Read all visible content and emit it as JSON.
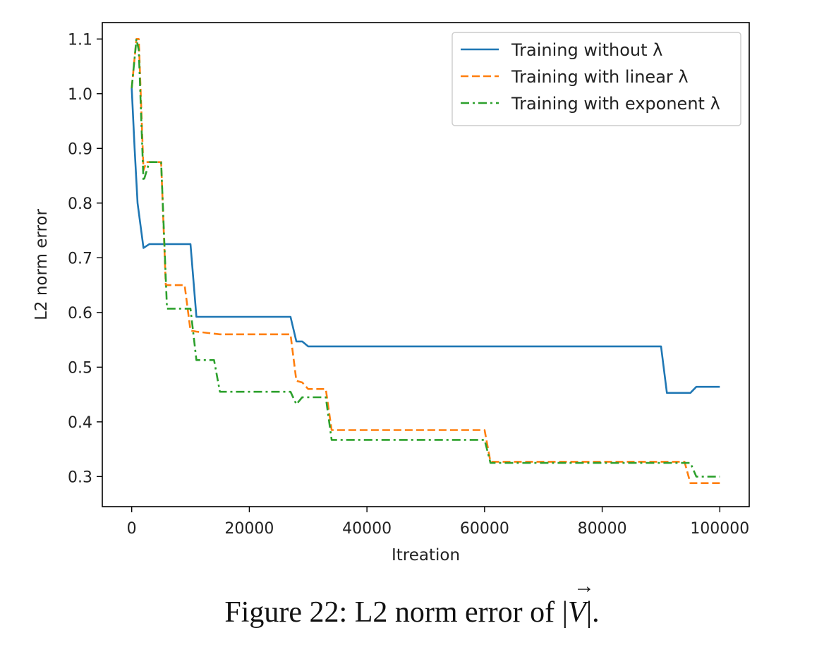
{
  "chart_data": {
    "type": "line",
    "title": "",
    "xlabel": "Itreation",
    "ylabel": "L2 norm error",
    "xlim": [
      -5000,
      105000
    ],
    "ylim": [
      0.245,
      1.13
    ],
    "xticks": [
      0,
      20000,
      40000,
      60000,
      80000,
      100000
    ],
    "xtick_labels": [
      "0",
      "20000",
      "40000",
      "60000",
      "80000",
      "100000"
    ],
    "yticks": [
      0.3,
      0.4,
      0.5,
      0.6,
      0.7,
      0.8,
      0.9,
      1.0,
      1.1
    ],
    "ytick_labels": [
      "0.3",
      "0.4",
      "0.5",
      "0.6",
      "0.7",
      "0.8",
      "0.9",
      "1.0",
      "1.1"
    ],
    "grid": false,
    "legend_position": "top-right",
    "series": [
      {
        "name": "Training without λ",
        "color": "#1f77b4",
        "style": "solid",
        "points": [
          [
            0,
            1.01
          ],
          [
            500,
            0.9
          ],
          [
            1000,
            0.8
          ],
          [
            2000,
            0.718
          ],
          [
            3000,
            0.725
          ],
          [
            10000,
            0.725
          ],
          [
            11000,
            0.592
          ],
          [
            27000,
            0.592
          ],
          [
            28000,
            0.547
          ],
          [
            29000,
            0.547
          ],
          [
            30000,
            0.538
          ],
          [
            90000,
            0.538
          ],
          [
            91000,
            0.453
          ],
          [
            95000,
            0.453
          ],
          [
            96000,
            0.464
          ],
          [
            100000,
            0.464
          ]
        ]
      },
      {
        "name": "Training with linear λ",
        "color": "#ff7f0e",
        "style": "dashed",
        "points": [
          [
            0,
            1.01
          ],
          [
            800,
            1.1
          ],
          [
            1200,
            1.1
          ],
          [
            2000,
            0.86
          ],
          [
            2500,
            0.875
          ],
          [
            5000,
            0.875
          ],
          [
            5800,
            0.65
          ],
          [
            9000,
            0.65
          ],
          [
            10000,
            0.567
          ],
          [
            11000,
            0.565
          ],
          [
            15000,
            0.56
          ],
          [
            27000,
            0.56
          ],
          [
            28000,
            0.475
          ],
          [
            29000,
            0.472
          ],
          [
            30000,
            0.46
          ],
          [
            33000,
            0.46
          ],
          [
            34000,
            0.385
          ],
          [
            60000,
            0.385
          ],
          [
            61000,
            0.327
          ],
          [
            94000,
            0.327
          ],
          [
            95000,
            0.288
          ],
          [
            100000,
            0.288
          ]
        ]
      },
      {
        "name": "Training with exponent λ",
        "color": "#2ca02c",
        "style": "dashdot",
        "points": [
          [
            0,
            1.01
          ],
          [
            800,
            1.1
          ],
          [
            1200,
            1.08
          ],
          [
            2000,
            0.84
          ],
          [
            3000,
            0.875
          ],
          [
            5000,
            0.875
          ],
          [
            6000,
            0.607
          ],
          [
            10000,
            0.607
          ],
          [
            11000,
            0.513
          ],
          [
            14000,
            0.513
          ],
          [
            15000,
            0.455
          ],
          [
            27000,
            0.455
          ],
          [
            28000,
            0.432
          ],
          [
            29000,
            0.445
          ],
          [
            33000,
            0.445
          ],
          [
            34000,
            0.367
          ],
          [
            60000,
            0.367
          ],
          [
            61000,
            0.325
          ],
          [
            95000,
            0.325
          ],
          [
            96000,
            0.3
          ],
          [
            100000,
            0.3
          ]
        ]
      }
    ]
  },
  "caption": {
    "prefix": "Figure 22: L2 norm error of |",
    "vector": "V",
    "suffix": "|."
  }
}
